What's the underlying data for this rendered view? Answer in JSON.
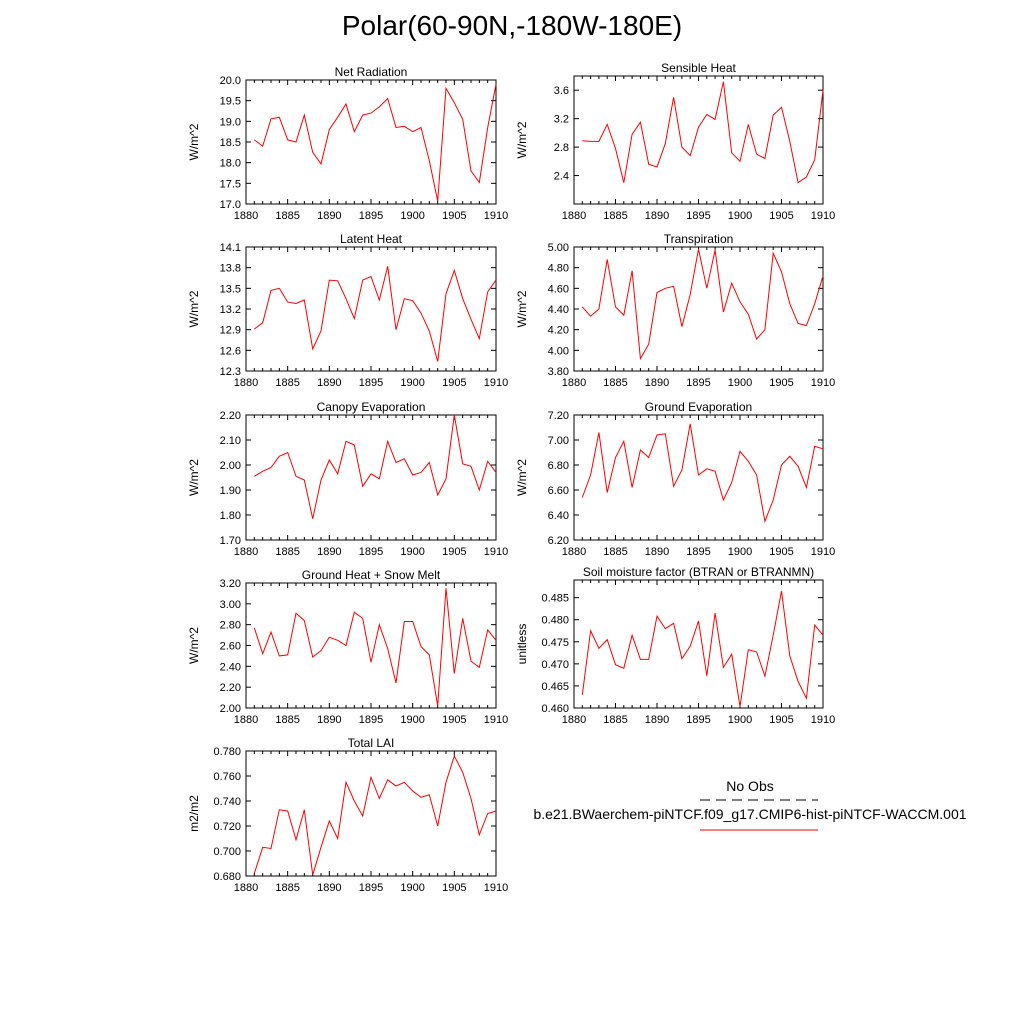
{
  "title": "Polar(60-90N,-180W-180E)",
  "legend": {
    "obs_label": "No Obs",
    "case_label": "b.e21.BWaerchem-piNTCF.f09_g17.CMIP6-hist-piNTCF-WACCM.001",
    "obs_color": "#000000",
    "case_color": "#ff0000"
  },
  "chart_data": [
    {
      "type": "line",
      "title": "Net Radiation",
      "ylabel": "W/m^2",
      "xlim": [
        1880,
        1910
      ],
      "ylim": [
        17.0,
        20.0
      ],
      "yticks": [
        "17.0",
        "17.5",
        "18.0",
        "18.5",
        "19.0",
        "19.5",
        "20.0"
      ],
      "xticks": [
        "1880",
        "1885",
        "1890",
        "1895",
        "1900",
        "1905",
        "1910"
      ],
      "x": [
        1881,
        1882,
        1883,
        1884,
        1885,
        1886,
        1887,
        1888,
        1889,
        1890,
        1891,
        1892,
        1893,
        1894,
        1895,
        1896,
        1897,
        1898,
        1899,
        1900,
        1901,
        1902,
        1903,
        1904,
        1905,
        1906,
        1907,
        1908,
        1909,
        1910
      ],
      "series": [
        {
          "values": [
            18.55,
            18.4,
            19.06,
            19.1,
            18.55,
            18.5,
            19.15,
            18.25,
            17.97,
            18.8,
            19.1,
            19.42,
            18.75,
            19.15,
            19.2,
            19.35,
            19.55,
            18.85,
            18.88,
            18.75,
            18.85,
            18.05,
            17.07,
            19.8,
            19.45,
            19.05,
            17.8,
            17.52,
            18.85,
            19.9
          ],
          "color": "#ff0000"
        }
      ]
    },
    {
      "type": "line",
      "title": "Sensible Heat",
      "ylabel": "W/m^2",
      "xlim": [
        1880,
        1910
      ],
      "ylim": [
        2.0,
        3.8
      ],
      "yticks": [
        "2.4",
        "2.8",
        "3.2",
        "3.6"
      ],
      "xticks": [
        "1880",
        "1885",
        "1890",
        "1895",
        "1900",
        "1905",
        "1910"
      ],
      "x": [
        1881,
        1882,
        1883,
        1884,
        1885,
        1886,
        1887,
        1888,
        1889,
        1890,
        1891,
        1892,
        1893,
        1894,
        1895,
        1896,
        1897,
        1898,
        1899,
        1900,
        1901,
        1902,
        1903,
        1904,
        1905,
        1906,
        1907,
        1908,
        1909,
        1910
      ],
      "series": [
        {
          "values": [
            2.89,
            2.88,
            2.88,
            3.12,
            2.78,
            2.3,
            2.98,
            3.15,
            2.56,
            2.52,
            2.85,
            3.5,
            2.8,
            2.68,
            3.08,
            3.26,
            3.19,
            3.72,
            2.72,
            2.6,
            3.12,
            2.7,
            2.64,
            3.25,
            3.36,
            2.88,
            2.3,
            2.38,
            2.62,
            3.6
          ],
          "color": "#ff0000"
        }
      ]
    },
    {
      "type": "line",
      "title": "Latent Heat",
      "ylabel": "W/m^2",
      "xlim": [
        1880,
        1910
      ],
      "ylim": [
        12.3,
        14.1
      ],
      "yticks": [
        "12.3",
        "12.6",
        "12.9",
        "13.2",
        "13.5",
        "13.8",
        "14.1"
      ],
      "xticks": [
        "1880",
        "1885",
        "1890",
        "1895",
        "1900",
        "1905",
        "1910"
      ],
      "x": [
        1881,
        1882,
        1883,
        1884,
        1885,
        1886,
        1887,
        1888,
        1889,
        1890,
        1891,
        1892,
        1893,
        1894,
        1895,
        1896,
        1897,
        1898,
        1899,
        1900,
        1901,
        1902,
        1903,
        1904,
        1905,
        1906,
        1907,
        1908,
        1909,
        1910
      ],
      "series": [
        {
          "values": [
            12.91,
            13.0,
            13.47,
            13.5,
            13.3,
            13.28,
            13.33,
            12.62,
            12.88,
            13.62,
            13.61,
            13.35,
            13.06,
            13.62,
            13.67,
            13.33,
            13.82,
            12.9,
            13.35,
            13.32,
            13.14,
            12.88,
            12.44,
            13.42,
            13.76,
            13.35,
            13.05,
            12.77,
            13.45,
            13.62
          ],
          "color": "#ff0000"
        }
      ]
    },
    {
      "type": "line",
      "title": "Transpiration",
      "ylabel": "W/m^2",
      "xlim": [
        1880,
        1910
      ],
      "ylim": [
        3.8,
        5.0
      ],
      "yticks": [
        "3.80",
        "4.00",
        "4.20",
        "4.40",
        "4.60",
        "4.80",
        "5.00"
      ],
      "xticks": [
        "1880",
        "1885",
        "1890",
        "1895",
        "1900",
        "1905",
        "1910"
      ],
      "x": [
        1881,
        1882,
        1883,
        1884,
        1885,
        1886,
        1887,
        1888,
        1889,
        1890,
        1891,
        1892,
        1893,
        1894,
        1895,
        1896,
        1897,
        1898,
        1899,
        1900,
        1901,
        1902,
        1903,
        1904,
        1905,
        1906,
        1907,
        1908,
        1909,
        1910
      ],
      "series": [
        {
          "values": [
            4.42,
            4.33,
            4.4,
            4.88,
            4.42,
            4.34,
            4.77,
            3.92,
            4.06,
            4.56,
            4.6,
            4.62,
            4.23,
            4.54,
            4.98,
            4.6,
            4.97,
            4.37,
            4.65,
            4.47,
            4.35,
            4.11,
            4.2,
            4.94,
            4.76,
            4.45,
            4.26,
            4.24,
            4.45,
            4.72
          ],
          "color": "#ff0000"
        }
      ]
    },
    {
      "type": "line",
      "title": "Canopy Evaporation",
      "ylabel": "W/m^2",
      "xlim": [
        1880,
        1910
      ],
      "ylim": [
        1.7,
        2.2
      ],
      "yticks": [
        "1.70",
        "1.80",
        "1.90",
        "2.00",
        "2.10",
        "2.20"
      ],
      "xticks": [
        "1880",
        "1885",
        "1890",
        "1895",
        "1900",
        "1905",
        "1910"
      ],
      "x": [
        1881,
        1882,
        1883,
        1884,
        1885,
        1886,
        1887,
        1888,
        1889,
        1890,
        1891,
        1892,
        1893,
        1894,
        1895,
        1896,
        1897,
        1898,
        1899,
        1900,
        1901,
        1902,
        1903,
        1904,
        1905,
        1906,
        1907,
        1908,
        1909,
        1910
      ],
      "series": [
        {
          "values": [
            1.955,
            1.975,
            1.99,
            2.035,
            2.05,
            1.955,
            1.94,
            1.785,
            1.94,
            2.02,
            1.965,
            2.095,
            2.08,
            1.915,
            1.965,
            1.945,
            2.095,
            2.01,
            2.025,
            1.96,
            1.97,
            2.01,
            1.88,
            1.945,
            2.2,
            2.005,
            1.995,
            1.9,
            2.015,
            1.97
          ],
          "color": "#ff0000"
        }
      ]
    },
    {
      "type": "line",
      "title": "Ground Evaporation",
      "ylabel": "W/m^2",
      "xlim": [
        1880,
        1910
      ],
      "ylim": [
        6.2,
        7.2
      ],
      "yticks": [
        "6.20",
        "6.40",
        "6.60",
        "6.80",
        "7.00",
        "7.20"
      ],
      "xticks": [
        "1880",
        "1885",
        "1890",
        "1895",
        "1900",
        "1905",
        "1910"
      ],
      "x": [
        1881,
        1882,
        1883,
        1884,
        1885,
        1886,
        1887,
        1888,
        1889,
        1890,
        1891,
        1892,
        1893,
        1894,
        1895,
        1896,
        1897,
        1898,
        1899,
        1900,
        1901,
        1902,
        1903,
        1904,
        1905,
        1906,
        1907,
        1908,
        1909,
        1910
      ],
      "series": [
        {
          "values": [
            6.54,
            6.72,
            7.06,
            6.58,
            6.86,
            6.99,
            6.62,
            6.92,
            6.86,
            7.04,
            7.05,
            6.63,
            6.76,
            7.13,
            6.72,
            6.77,
            6.75,
            6.52,
            6.66,
            6.91,
            6.83,
            6.72,
            6.35,
            6.52,
            6.8,
            6.87,
            6.79,
            6.62,
            6.95,
            6.93
          ],
          "color": "#ff0000"
        }
      ]
    },
    {
      "type": "line",
      "title": "Ground Heat + Snow Melt",
      "ylabel": "W/m^2",
      "xlim": [
        1880,
        1910
      ],
      "ylim": [
        2.0,
        3.2
      ],
      "yticks": [
        "2.00",
        "2.20",
        "2.40",
        "2.60",
        "2.80",
        "3.00",
        "3.20"
      ],
      "xticks": [
        "1880",
        "1885",
        "1890",
        "1895",
        "1900",
        "1905",
        "1910"
      ],
      "x": [
        1881,
        1882,
        1883,
        1884,
        1885,
        1886,
        1887,
        1888,
        1889,
        1890,
        1891,
        1892,
        1893,
        1894,
        1895,
        1896,
        1897,
        1898,
        1899,
        1900,
        1901,
        1902,
        1903,
        1904,
        1905,
        1906,
        1907,
        1908,
        1909,
        1910
      ],
      "series": [
        {
          "values": [
            2.77,
            2.52,
            2.73,
            2.5,
            2.51,
            2.91,
            2.84,
            2.49,
            2.55,
            2.68,
            2.65,
            2.6,
            2.92,
            2.86,
            2.44,
            2.8,
            2.57,
            2.24,
            2.83,
            2.83,
            2.59,
            2.51,
            2.02,
            3.15,
            2.33,
            2.86,
            2.45,
            2.39,
            2.75,
            2.65
          ],
          "color": "#ff0000"
        }
      ]
    },
    {
      "type": "line",
      "title": "Soil moisture factor (BTRAN or BTRANMN)",
      "ylabel": "unitless",
      "xlim": [
        1880,
        1910
      ],
      "ylim": [
        0.46,
        0.489
      ],
      "yticks": [
        "0.460",
        "0.465",
        "0.470",
        "0.475",
        "0.480",
        "0.485"
      ],
      "xticks": [
        "1880",
        "1885",
        "1890",
        "1895",
        "1900",
        "1905",
        "1910"
      ],
      "x": [
        1881,
        1882,
        1883,
        1884,
        1885,
        1886,
        1887,
        1888,
        1889,
        1890,
        1891,
        1892,
        1893,
        1894,
        1895,
        1896,
        1897,
        1898,
        1899,
        1900,
        1901,
        1902,
        1903,
        1904,
        1905,
        1906,
        1907,
        1908,
        1909,
        1910
      ],
      "series": [
        {
          "values": [
            0.463,
            0.4775,
            0.4735,
            0.4755,
            0.4698,
            0.469,
            0.4765,
            0.471,
            0.471,
            0.4808,
            0.478,
            0.4792,
            0.4712,
            0.474,
            0.4797,
            0.4673,
            0.4815,
            0.4692,
            0.4722,
            0.4603,
            0.4732,
            0.4727,
            0.4672,
            0.4765,
            0.4865,
            0.4718,
            0.466,
            0.4622,
            0.4788,
            0.4765
          ],
          "color": "#ff0000"
        }
      ]
    },
    {
      "type": "line",
      "title": "Total LAI",
      "ylabel": "m2/m2",
      "xlim": [
        1880,
        1910
      ],
      "ylim": [
        0.68,
        0.78
      ],
      "yticks": [
        "0.680",
        "0.700",
        "0.720",
        "0.740",
        "0.760",
        "0.780"
      ],
      "xticks": [
        "1880",
        "1885",
        "1890",
        "1895",
        "1900",
        "1905",
        "1910"
      ],
      "x": [
        1881,
        1882,
        1883,
        1884,
        1885,
        1886,
        1887,
        1888,
        1889,
        1890,
        1891,
        1892,
        1893,
        1894,
        1895,
        1896,
        1897,
        1898,
        1899,
        1900,
        1901,
        1902,
        1903,
        1904,
        1905,
        1906,
        1907,
        1908,
        1909,
        1910
      ],
      "series": [
        {
          "values": [
            0.682,
            0.703,
            0.702,
            0.733,
            0.732,
            0.709,
            0.733,
            0.681,
            0.703,
            0.724,
            0.71,
            0.755,
            0.74,
            0.728,
            0.759,
            0.742,
            0.757,
            0.752,
            0.755,
            0.748,
            0.743,
            0.745,
            0.72,
            0.755,
            0.776,
            0.763,
            0.742,
            0.713,
            0.73,
            0.732
          ],
          "color": "#ff0000"
        }
      ]
    }
  ]
}
